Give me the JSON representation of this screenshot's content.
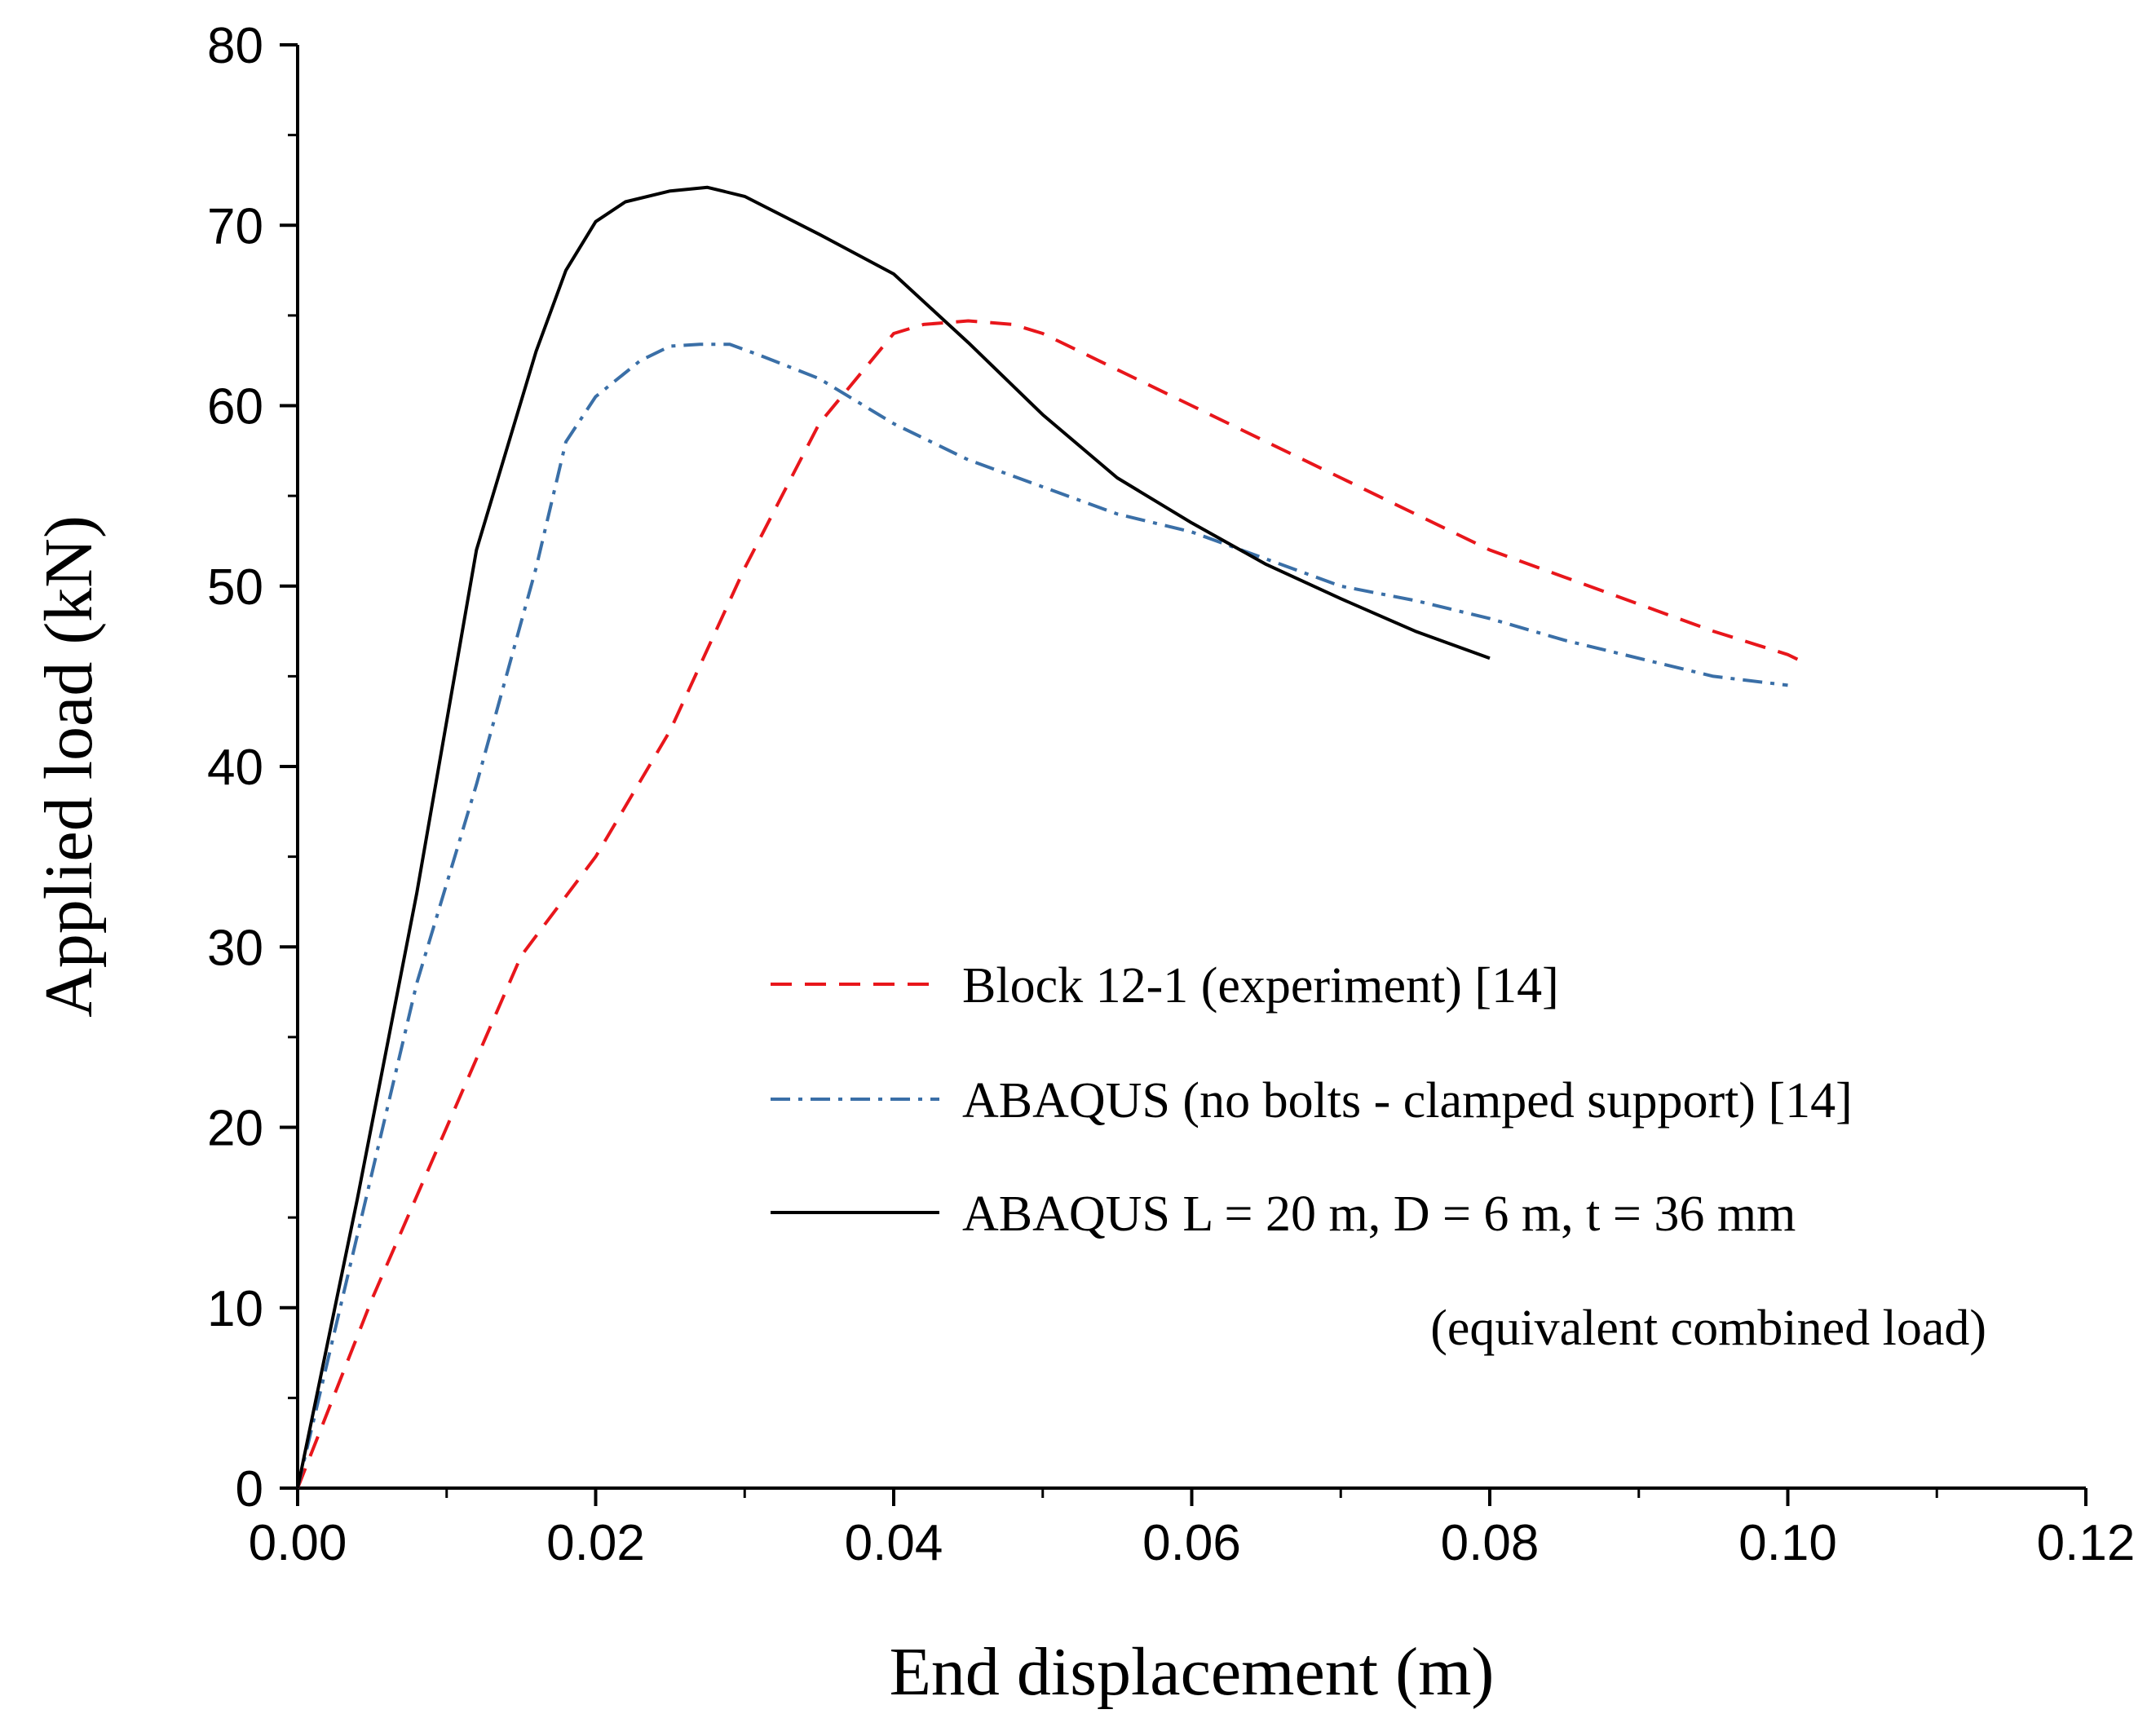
{
  "chart_data": {
    "type": "line",
    "title": "",
    "xlabel": "End displacement (m)",
    "ylabel": "Applied load (kN)",
    "xlim": [
      0,
      0.12
    ],
    "ylim": [
      0,
      80
    ],
    "xticks": [
      "0.00",
      "0.02",
      "0.04",
      "0.06",
      "0.08",
      "0.10",
      "0.12"
    ],
    "yticks": [
      "0",
      "10",
      "20",
      "30",
      "40",
      "50",
      "60",
      "70",
      "80"
    ],
    "grid": false,
    "legend_position": "lower-right",
    "series": [
      {
        "name": "Block 12-1 (experiment) [14]",
        "color": "#e8161b",
        "style": "dashed",
        "x": [
          0,
          0.005,
          0.01,
          0.015,
          0.02,
          0.025,
          0.03,
          0.035,
          0.04,
          0.042,
          0.045,
          0.048,
          0.05,
          0.055,
          0.06,
          0.065,
          0.07,
          0.075,
          0.08,
          0.085,
          0.09,
          0.095,
          0.1,
          0.101
        ],
        "values": [
          0,
          10.5,
          20,
          29.5,
          35,
          42,
          51,
          59,
          64,
          64.5,
          64.7,
          64.5,
          64,
          62,
          60,
          58,
          56,
          54,
          52,
          50.5,
          49,
          47.5,
          46.2,
          45.8
        ]
      },
      {
        "name": "ABAQUS (no bolts - clamped support) [14]",
        "color": "#3a6fa7",
        "style": "dashdot",
        "x": [
          0,
          0.004,
          0.008,
          0.012,
          0.016,
          0.018,
          0.02,
          0.023,
          0.025,
          0.027,
          0.029,
          0.031,
          0.035,
          0.04,
          0.045,
          0.05,
          0.055,
          0.06,
          0.065,
          0.07,
          0.075,
          0.08,
          0.085,
          0.09,
          0.095,
          0.1
        ],
        "values": [
          0,
          14,
          28,
          39,
          51,
          58,
          60.5,
          62.5,
          63.3,
          63.4,
          63.4,
          62.8,
          61.5,
          59,
          57,
          55.5,
          54,
          53,
          51.5,
          50,
          49.2,
          48.2,
          47,
          46,
          45,
          44.5
        ]
      },
      {
        "name": "ABAQUS L = 20 m, D = 6 m, t = 36 mm",
        "name_line2": "(equivalent combined load)",
        "color": "#000000",
        "style": "solid",
        "x": [
          0,
          0.004,
          0.008,
          0.012,
          0.016,
          0.018,
          0.02,
          0.022,
          0.025,
          0.0275,
          0.03,
          0.035,
          0.04,
          0.045,
          0.05,
          0.055,
          0.06,
          0.065,
          0.07,
          0.075,
          0.08
        ],
        "values": [
          0,
          16,
          33,
          52,
          63,
          67.5,
          70.2,
          71.3,
          71.9,
          72.1,
          71.6,
          69.5,
          67.3,
          63.5,
          59.5,
          56,
          53.5,
          51.2,
          49.3,
          47.5,
          46
        ]
      }
    ]
  }
}
